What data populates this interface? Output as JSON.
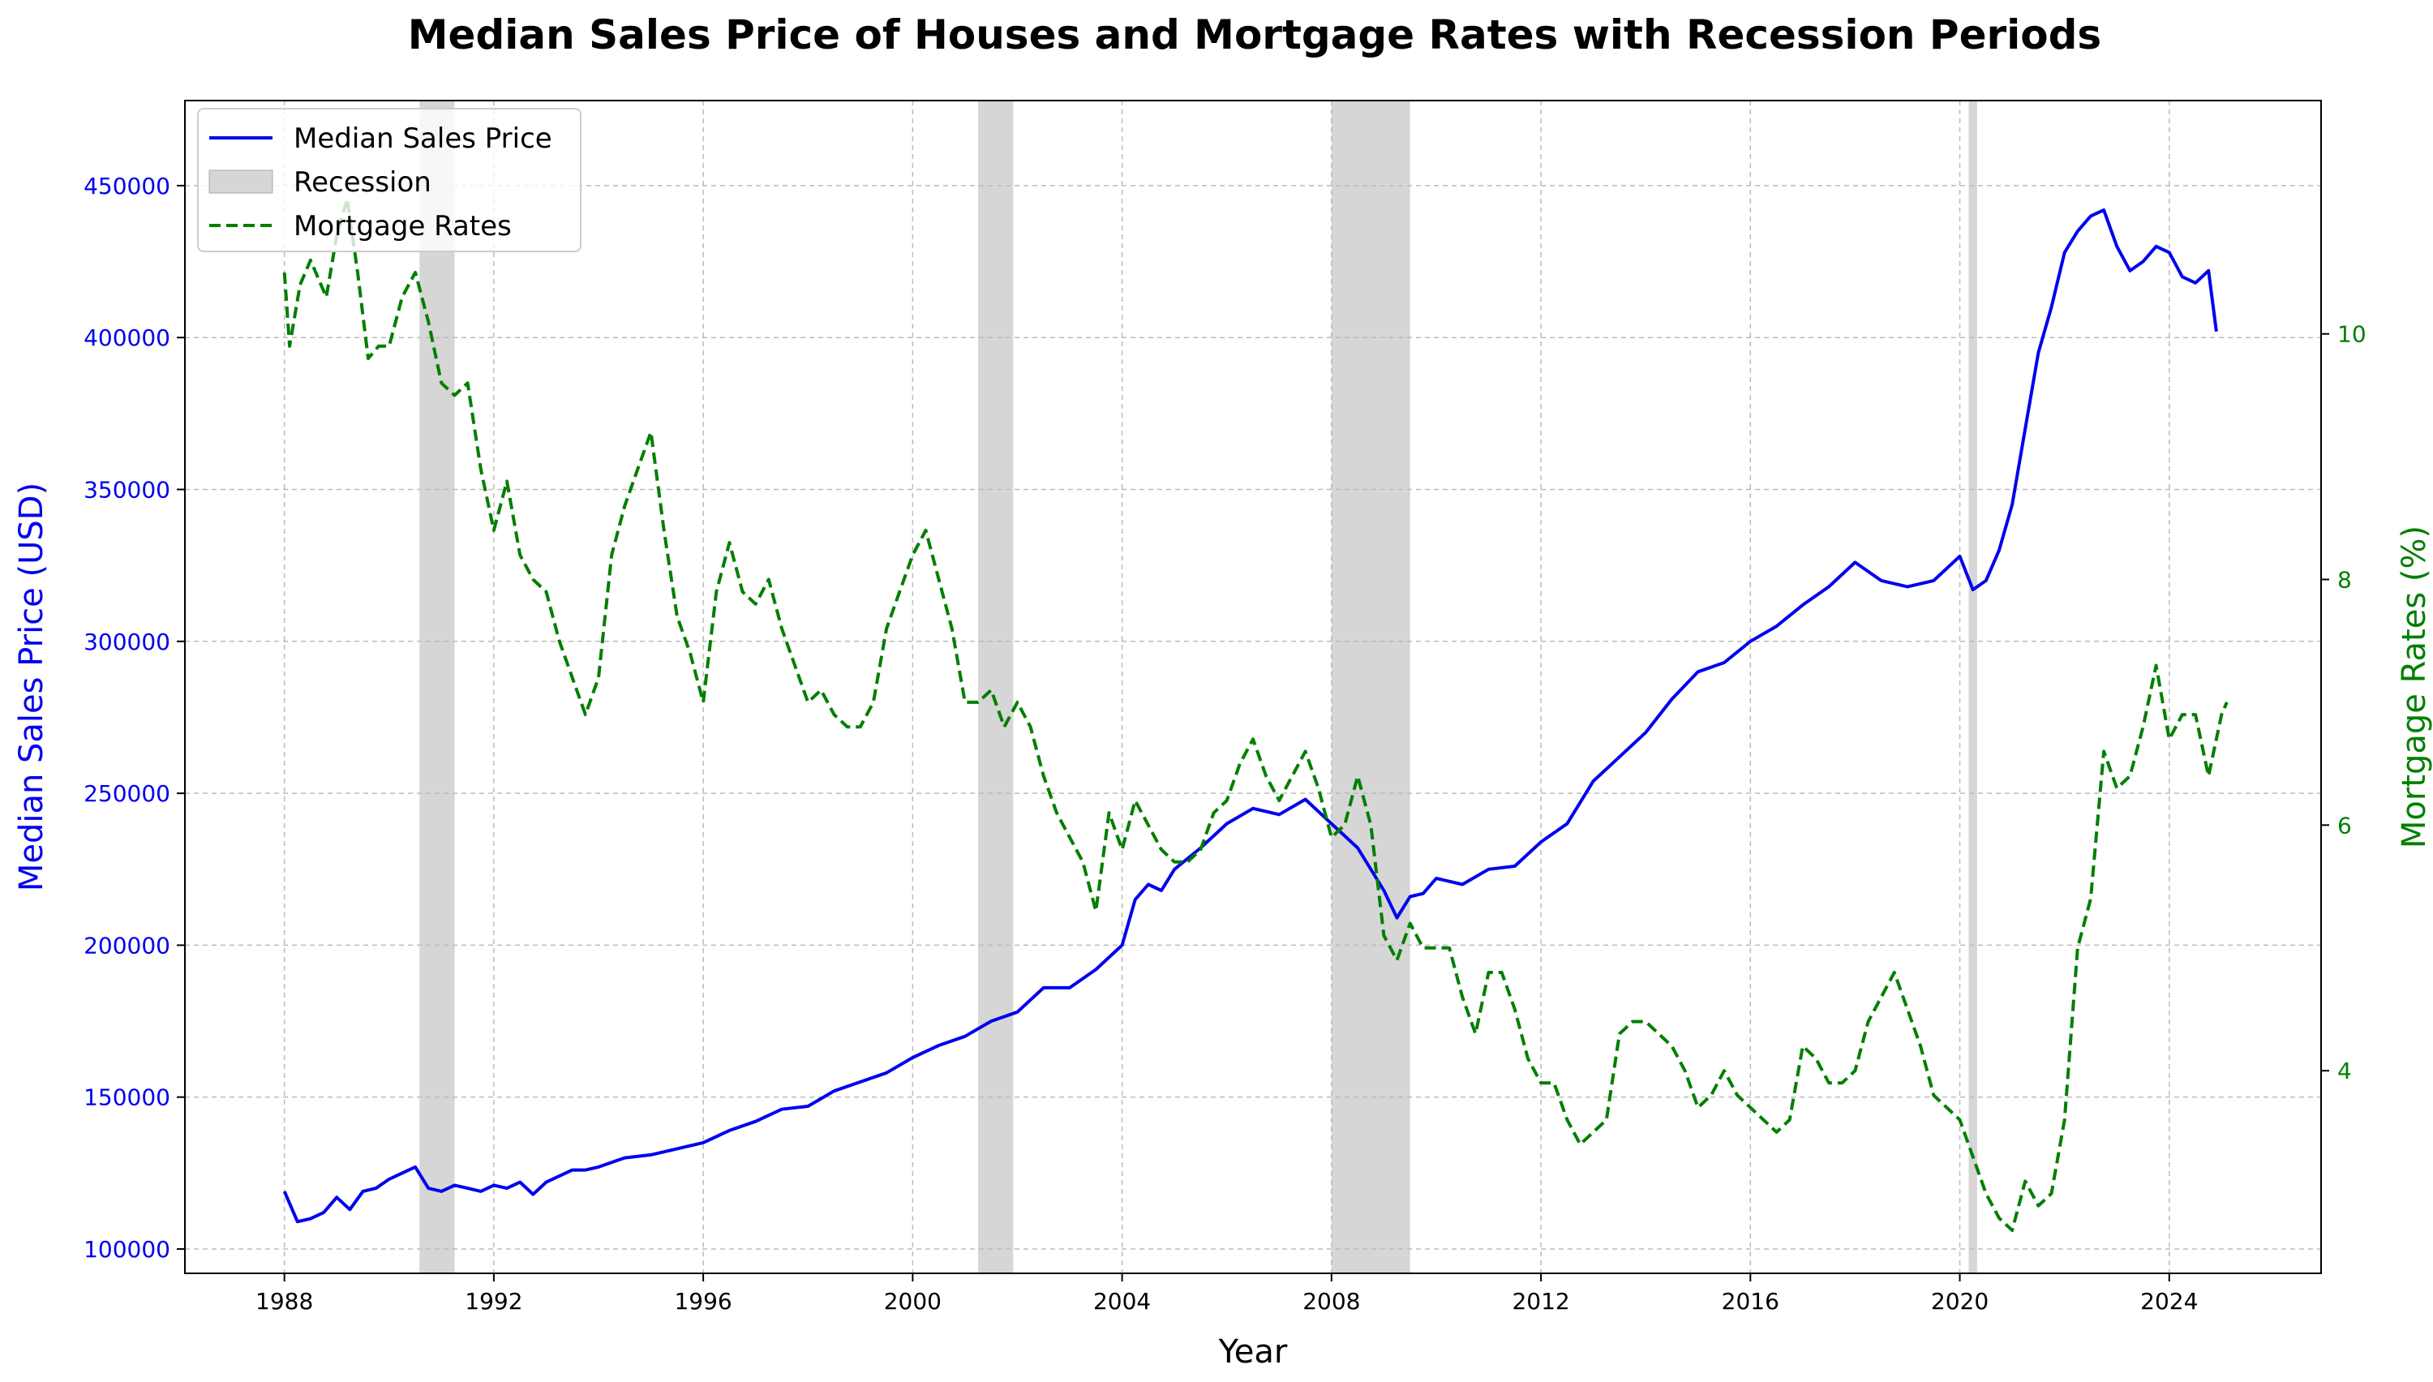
{
  "chart_data": {
    "type": "line",
    "title": "Median Sales Price of Houses and Mortgage Rates with Recession Periods",
    "xlabel": "Year",
    "ylabel_left": "Median Sales Price (USD)",
    "ylabel_right": "Mortgage Rates (%)",
    "xlim": [
      1986.1,
      2026.9
    ],
    "ylim_left": [
      92000,
      478000
    ],
    "ylim_right": [
      2.35,
      11.9
    ],
    "x_ticks": [
      1988,
      1992,
      1996,
      2000,
      2004,
      2008,
      2012,
      2016,
      2020,
      2024
    ],
    "y_left_ticks": [
      100000,
      150000,
      200000,
      250000,
      300000,
      350000,
      400000,
      450000
    ],
    "y_right_ticks": [
      4,
      6,
      8,
      10
    ],
    "grid": true,
    "legend_position": "top-left",
    "legend": [
      "Median Sales Price",
      "Recession",
      "Mortgage Rates"
    ],
    "colors": {
      "price": "#0000ee",
      "rates": "#007f00",
      "recession": "#d6d6d6"
    },
    "recessions": [
      [
        1990.58,
        1991.25
      ],
      [
        2001.25,
        2001.92
      ],
      [
        2008.0,
        2009.5
      ],
      [
        2020.17,
        2020.33
      ]
    ],
    "series": [
      {
        "name": "Median Sales Price",
        "axis": "left",
        "style": "solid",
        "points": [
          [
            1988.0,
            119000
          ],
          [
            1988.25,
            109000
          ],
          [
            1988.5,
            110000
          ],
          [
            1988.75,
            112000
          ],
          [
            1989.0,
            117000
          ],
          [
            1989.25,
            113000
          ],
          [
            1989.5,
            119000
          ],
          [
            1989.75,
            120000
          ],
          [
            1990.0,
            123000
          ],
          [
            1990.25,
            125000
          ],
          [
            1990.5,
            127000
          ],
          [
            1990.75,
            120000
          ],
          [
            1991.0,
            119000
          ],
          [
            1991.25,
            121000
          ],
          [
            1991.5,
            120000
          ],
          [
            1991.75,
            119000
          ],
          [
            1992.0,
            121000
          ],
          [
            1992.25,
            120000
          ],
          [
            1992.5,
            122000
          ],
          [
            1992.75,
            118000
          ],
          [
            1993.0,
            122000
          ],
          [
            1993.25,
            124000
          ],
          [
            1993.5,
            126000
          ],
          [
            1993.75,
            126000
          ],
          [
            1994.0,
            127000
          ],
          [
            1994.5,
            130000
          ],
          [
            1995.0,
            131000
          ],
          [
            1995.5,
            133000
          ],
          [
            1996.0,
            135000
          ],
          [
            1996.5,
            139000
          ],
          [
            1997.0,
            142000
          ],
          [
            1997.5,
            146000
          ],
          [
            1998.0,
            147000
          ],
          [
            1998.5,
            152000
          ],
          [
            1999.0,
            155000
          ],
          [
            1999.5,
            158000
          ],
          [
            2000.0,
            163000
          ],
          [
            2000.5,
            167000
          ],
          [
            2001.0,
            170000
          ],
          [
            2001.5,
            175000
          ],
          [
            2002.0,
            178000
          ],
          [
            2002.5,
            186000
          ],
          [
            2003.0,
            186000
          ],
          [
            2003.5,
            192000
          ],
          [
            2004.0,
            200000
          ],
          [
            2004.25,
            215000
          ],
          [
            2004.5,
            220000
          ],
          [
            2004.75,
            218000
          ],
          [
            2005.0,
            225000
          ],
          [
            2005.5,
            232000
          ],
          [
            2006.0,
            240000
          ],
          [
            2006.5,
            245000
          ],
          [
            2007.0,
            243000
          ],
          [
            2007.5,
            248000
          ],
          [
            2008.0,
            240000
          ],
          [
            2008.5,
            232000
          ],
          [
            2009.0,
            218000
          ],
          [
            2009.25,
            209000
          ],
          [
            2009.5,
            216000
          ],
          [
            2009.75,
            217000
          ],
          [
            2010.0,
            222000
          ],
          [
            2010.5,
            220000
          ],
          [
            2011.0,
            225000
          ],
          [
            2011.5,
            226000
          ],
          [
            2012.0,
            234000
          ],
          [
            2012.5,
            240000
          ],
          [
            2013.0,
            254000
          ],
          [
            2013.5,
            262000
          ],
          [
            2014.0,
            270000
          ],
          [
            2014.5,
            281000
          ],
          [
            2015.0,
            290000
          ],
          [
            2015.5,
            293000
          ],
          [
            2016.0,
            300000
          ],
          [
            2016.5,
            305000
          ],
          [
            2017.0,
            312000
          ],
          [
            2017.5,
            318000
          ],
          [
            2018.0,
            326000
          ],
          [
            2018.5,
            320000
          ],
          [
            2019.0,
            318000
          ],
          [
            2019.5,
            320000
          ],
          [
            2020.0,
            328000
          ],
          [
            2020.25,
            317000
          ],
          [
            2020.5,
            320000
          ],
          [
            2020.75,
            330000
          ],
          [
            2021.0,
            345000
          ],
          [
            2021.25,
            370000
          ],
          [
            2021.5,
            395000
          ],
          [
            2021.75,
            410000
          ],
          [
            2022.0,
            428000
          ],
          [
            2022.25,
            435000
          ],
          [
            2022.5,
            440000
          ],
          [
            2022.75,
            442000
          ],
          [
            2023.0,
            430000
          ],
          [
            2023.25,
            422000
          ],
          [
            2023.5,
            425000
          ],
          [
            2023.75,
            430000
          ],
          [
            2024.0,
            428000
          ],
          [
            2024.25,
            420000
          ],
          [
            2024.5,
            418000
          ],
          [
            2024.75,
            422000
          ],
          [
            2024.9,
            402000
          ]
        ]
      },
      {
        "name": "Mortgage Rates",
        "axis": "right",
        "style": "dashed",
        "points": [
          [
            1988.0,
            10.5
          ],
          [
            1988.1,
            9.9
          ],
          [
            1988.3,
            10.4
          ],
          [
            1988.5,
            10.6
          ],
          [
            1988.8,
            10.3
          ],
          [
            1989.0,
            10.8
          ],
          [
            1989.2,
            11.1
          ],
          [
            1989.4,
            10.5
          ],
          [
            1989.6,
            9.8
          ],
          [
            1989.8,
            9.9
          ],
          [
            1990.0,
            9.9
          ],
          [
            1990.25,
            10.3
          ],
          [
            1990.5,
            10.5
          ],
          [
            1990.75,
            10.1
          ],
          [
            1991.0,
            9.6
          ],
          [
            1991.25,
            9.5
          ],
          [
            1991.5,
            9.6
          ],
          [
            1991.75,
            8.9
          ],
          [
            1992.0,
            8.4
          ],
          [
            1992.25,
            8.8
          ],
          [
            1992.5,
            8.2
          ],
          [
            1992.75,
            8.0
          ],
          [
            1993.0,
            7.9
          ],
          [
            1993.25,
            7.5
          ],
          [
            1993.5,
            7.2
          ],
          [
            1993.75,
            6.9
          ],
          [
            1994.0,
            7.2
          ],
          [
            1994.25,
            8.2
          ],
          [
            1994.5,
            8.6
          ],
          [
            1994.75,
            8.9
          ],
          [
            1995.0,
            9.2
          ],
          [
            1995.25,
            8.4
          ],
          [
            1995.5,
            7.7
          ],
          [
            1995.75,
            7.4
          ],
          [
            1996.0,
            7.0
          ],
          [
            1996.25,
            7.9
          ],
          [
            1996.5,
            8.3
          ],
          [
            1996.75,
            7.9
          ],
          [
            1997.0,
            7.8
          ],
          [
            1997.25,
            8.0
          ],
          [
            1997.5,
            7.6
          ],
          [
            1997.75,
            7.3
          ],
          [
            1998.0,
            7.0
          ],
          [
            1998.25,
            7.1
          ],
          [
            1998.5,
            6.9
          ],
          [
            1998.75,
            6.8
          ],
          [
            1999.0,
            6.8
          ],
          [
            1999.25,
            7.0
          ],
          [
            1999.5,
            7.6
          ],
          [
            1999.75,
            7.9
          ],
          [
            2000.0,
            8.2
          ],
          [
            2000.25,
            8.4
          ],
          [
            2000.5,
            8.0
          ],
          [
            2000.75,
            7.6
          ],
          [
            2001.0,
            7.0
          ],
          [
            2001.25,
            7.0
          ],
          [
            2001.5,
            7.1
          ],
          [
            2001.75,
            6.8
          ],
          [
            2002.0,
            7.0
          ],
          [
            2002.25,
            6.8
          ],
          [
            2002.5,
            6.4
          ],
          [
            2002.75,
            6.1
          ],
          [
            2003.0,
            5.9
          ],
          [
            2003.25,
            5.7
          ],
          [
            2003.5,
            5.3
          ],
          [
            2003.75,
            6.1
          ],
          [
            2004.0,
            5.8
          ],
          [
            2004.25,
            6.2
          ],
          [
            2004.5,
            6.0
          ],
          [
            2004.75,
            5.8
          ],
          [
            2005.0,
            5.7
          ],
          [
            2005.25,
            5.7
          ],
          [
            2005.5,
            5.8
          ],
          [
            2005.75,
            6.1
          ],
          [
            2006.0,
            6.2
          ],
          [
            2006.25,
            6.5
          ],
          [
            2006.5,
            6.7
          ],
          [
            2006.75,
            6.4
          ],
          [
            2007.0,
            6.2
          ],
          [
            2007.25,
            6.4
          ],
          [
            2007.5,
            6.6
          ],
          [
            2007.75,
            6.3
          ],
          [
            2008.0,
            5.9
          ],
          [
            2008.25,
            6.0
          ],
          [
            2008.5,
            6.4
          ],
          [
            2008.75,
            6.0
          ],
          [
            2009.0,
            5.1
          ],
          [
            2009.25,
            4.9
          ],
          [
            2009.5,
            5.2
          ],
          [
            2009.75,
            5.0
          ],
          [
            2010.0,
            5.0
          ],
          [
            2010.25,
            5.0
          ],
          [
            2010.5,
            4.6
          ],
          [
            2010.75,
            4.3
          ],
          [
            2011.0,
            4.8
          ],
          [
            2011.25,
            4.8
          ],
          [
            2011.5,
            4.5
          ],
          [
            2011.75,
            4.1
          ],
          [
            2012.0,
            3.9
          ],
          [
            2012.25,
            3.9
          ],
          [
            2012.5,
            3.6
          ],
          [
            2012.75,
            3.4
          ],
          [
            2013.0,
            3.5
          ],
          [
            2013.25,
            3.6
          ],
          [
            2013.5,
            4.3
          ],
          [
            2013.75,
            4.4
          ],
          [
            2014.0,
            4.4
          ],
          [
            2014.25,
            4.3
          ],
          [
            2014.5,
            4.2
          ],
          [
            2014.75,
            4.0
          ],
          [
            2015.0,
            3.7
          ],
          [
            2015.25,
            3.8
          ],
          [
            2015.5,
            4.0
          ],
          [
            2015.75,
            3.8
          ],
          [
            2016.0,
            3.7
          ],
          [
            2016.25,
            3.6
          ],
          [
            2016.5,
            3.5
          ],
          [
            2016.75,
            3.6
          ],
          [
            2017.0,
            4.2
          ],
          [
            2017.25,
            4.1
          ],
          [
            2017.5,
            3.9
          ],
          [
            2017.75,
            3.9
          ],
          [
            2018.0,
            4.0
          ],
          [
            2018.25,
            4.4
          ],
          [
            2018.5,
            4.6
          ],
          [
            2018.75,
            4.8
          ],
          [
            2019.0,
            4.5
          ],
          [
            2019.25,
            4.2
          ],
          [
            2019.5,
            3.8
          ],
          [
            2019.75,
            3.7
          ],
          [
            2020.0,
            3.6
          ],
          [
            2020.25,
            3.3
          ],
          [
            2020.5,
            3.0
          ],
          [
            2020.75,
            2.8
          ],
          [
            2021.0,
            2.7
          ],
          [
            2021.25,
            3.1
          ],
          [
            2021.5,
            2.9
          ],
          [
            2021.75,
            3.0
          ],
          [
            2022.0,
            3.6
          ],
          [
            2022.25,
            5.0
          ],
          [
            2022.5,
            5.4
          ],
          [
            2022.75,
            6.6
          ],
          [
            2023.0,
            6.3
          ],
          [
            2023.25,
            6.4
          ],
          [
            2023.5,
            6.8
          ],
          [
            2023.75,
            7.3
          ],
          [
            2024.0,
            6.7
          ],
          [
            2024.25,
            6.9
          ],
          [
            2024.5,
            6.9
          ],
          [
            2024.75,
            6.4
          ],
          [
            2025.0,
            6.9
          ],
          [
            2025.1,
            7.0
          ]
        ]
      }
    ]
  }
}
